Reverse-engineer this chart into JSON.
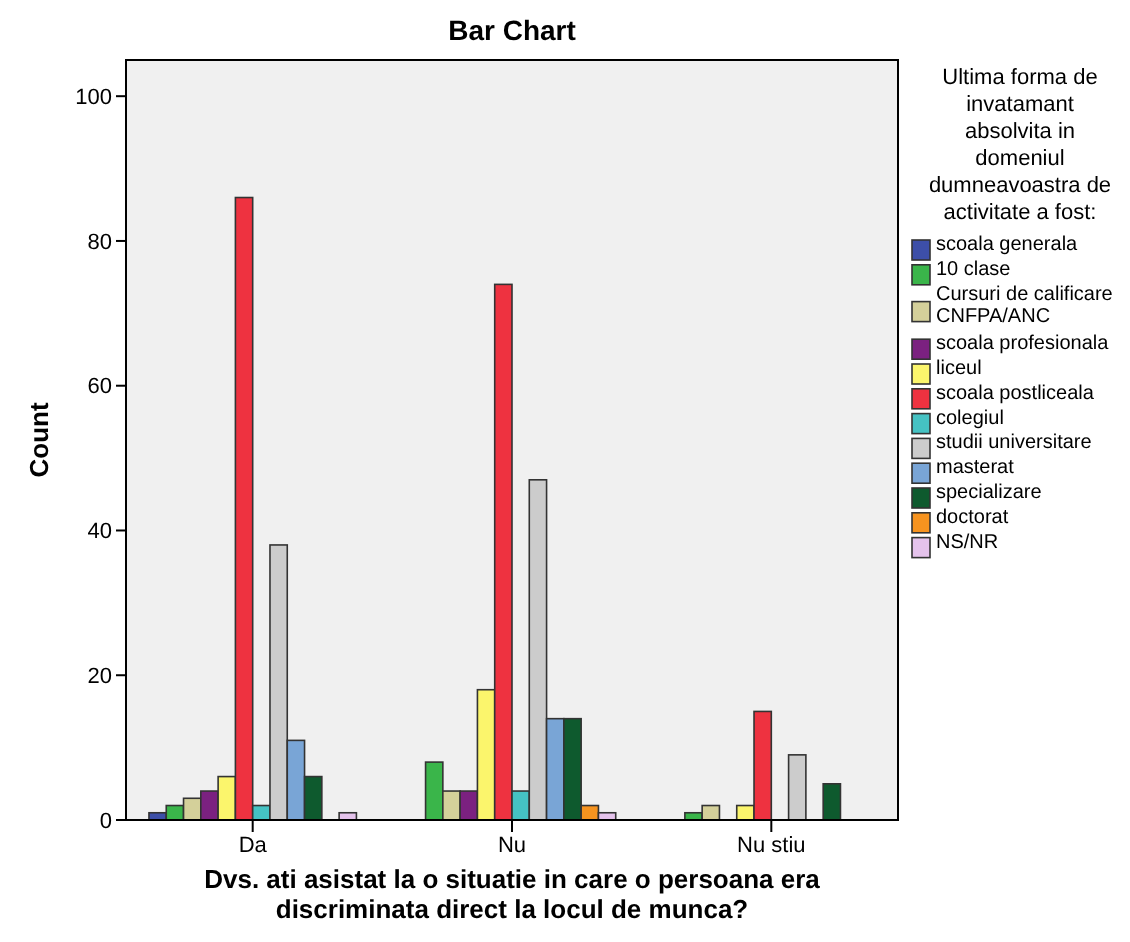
{
  "chart_data": {
    "type": "bar",
    "title": "Bar Chart",
    "xlabel": "Dvs. ati asistat la o situatie in care o persoana era\ndiscriminata direct la locul de munca?",
    "ylabel": "Count",
    "legend_title": "Ultima forma de\ninvatamant\nabsolvita in\ndomeniul\ndumneavoastra de\nactivitate a fost:",
    "legend": "right",
    "categories": [
      "Da",
      "Nu",
      "Nu stiu"
    ],
    "ylim": [
      0,
      105
    ],
    "yticks": [
      0,
      20,
      40,
      60,
      80,
      100
    ],
    "grid": false,
    "series": [
      {
        "name": "scoala generala",
        "color": "#3d4fa8",
        "values": [
          1,
          null,
          null
        ]
      },
      {
        "name": "10 clase",
        "color": "#3ab54a",
        "values": [
          2,
          8,
          1
        ]
      },
      {
        "name": "Cursuri de calificare\nCNFPA/ANC",
        "color": "#d4d09a",
        "values": [
          3,
          4,
          2
        ]
      },
      {
        "name": "scoala profesionala",
        "color": "#7b2180",
        "values": [
          4,
          4,
          null
        ]
      },
      {
        "name": "liceul",
        "color": "#fbf56c",
        "values": [
          6,
          18,
          2
        ]
      },
      {
        "name": "scoala postliceala",
        "color": "#ee3240",
        "values": [
          86,
          74,
          15
        ]
      },
      {
        "name": "colegiul",
        "color": "#45c2c3",
        "values": [
          2,
          4,
          null
        ]
      },
      {
        "name": "studii universitare",
        "color": "#cccccc",
        "values": [
          38,
          47,
          9
        ]
      },
      {
        "name": "masterat",
        "color": "#79a5d6",
        "values": [
          11,
          14,
          null
        ]
      },
      {
        "name": "specializare",
        "color": "#0e5a2e",
        "values": [
          6,
          14,
          5
        ]
      },
      {
        "name": "doctorat",
        "color": "#f6931f",
        "values": [
          null,
          2,
          null
        ]
      },
      {
        "name": "NS/NR",
        "color": "#e5c3ec",
        "values": [
          1,
          1,
          null
        ]
      }
    ]
  }
}
